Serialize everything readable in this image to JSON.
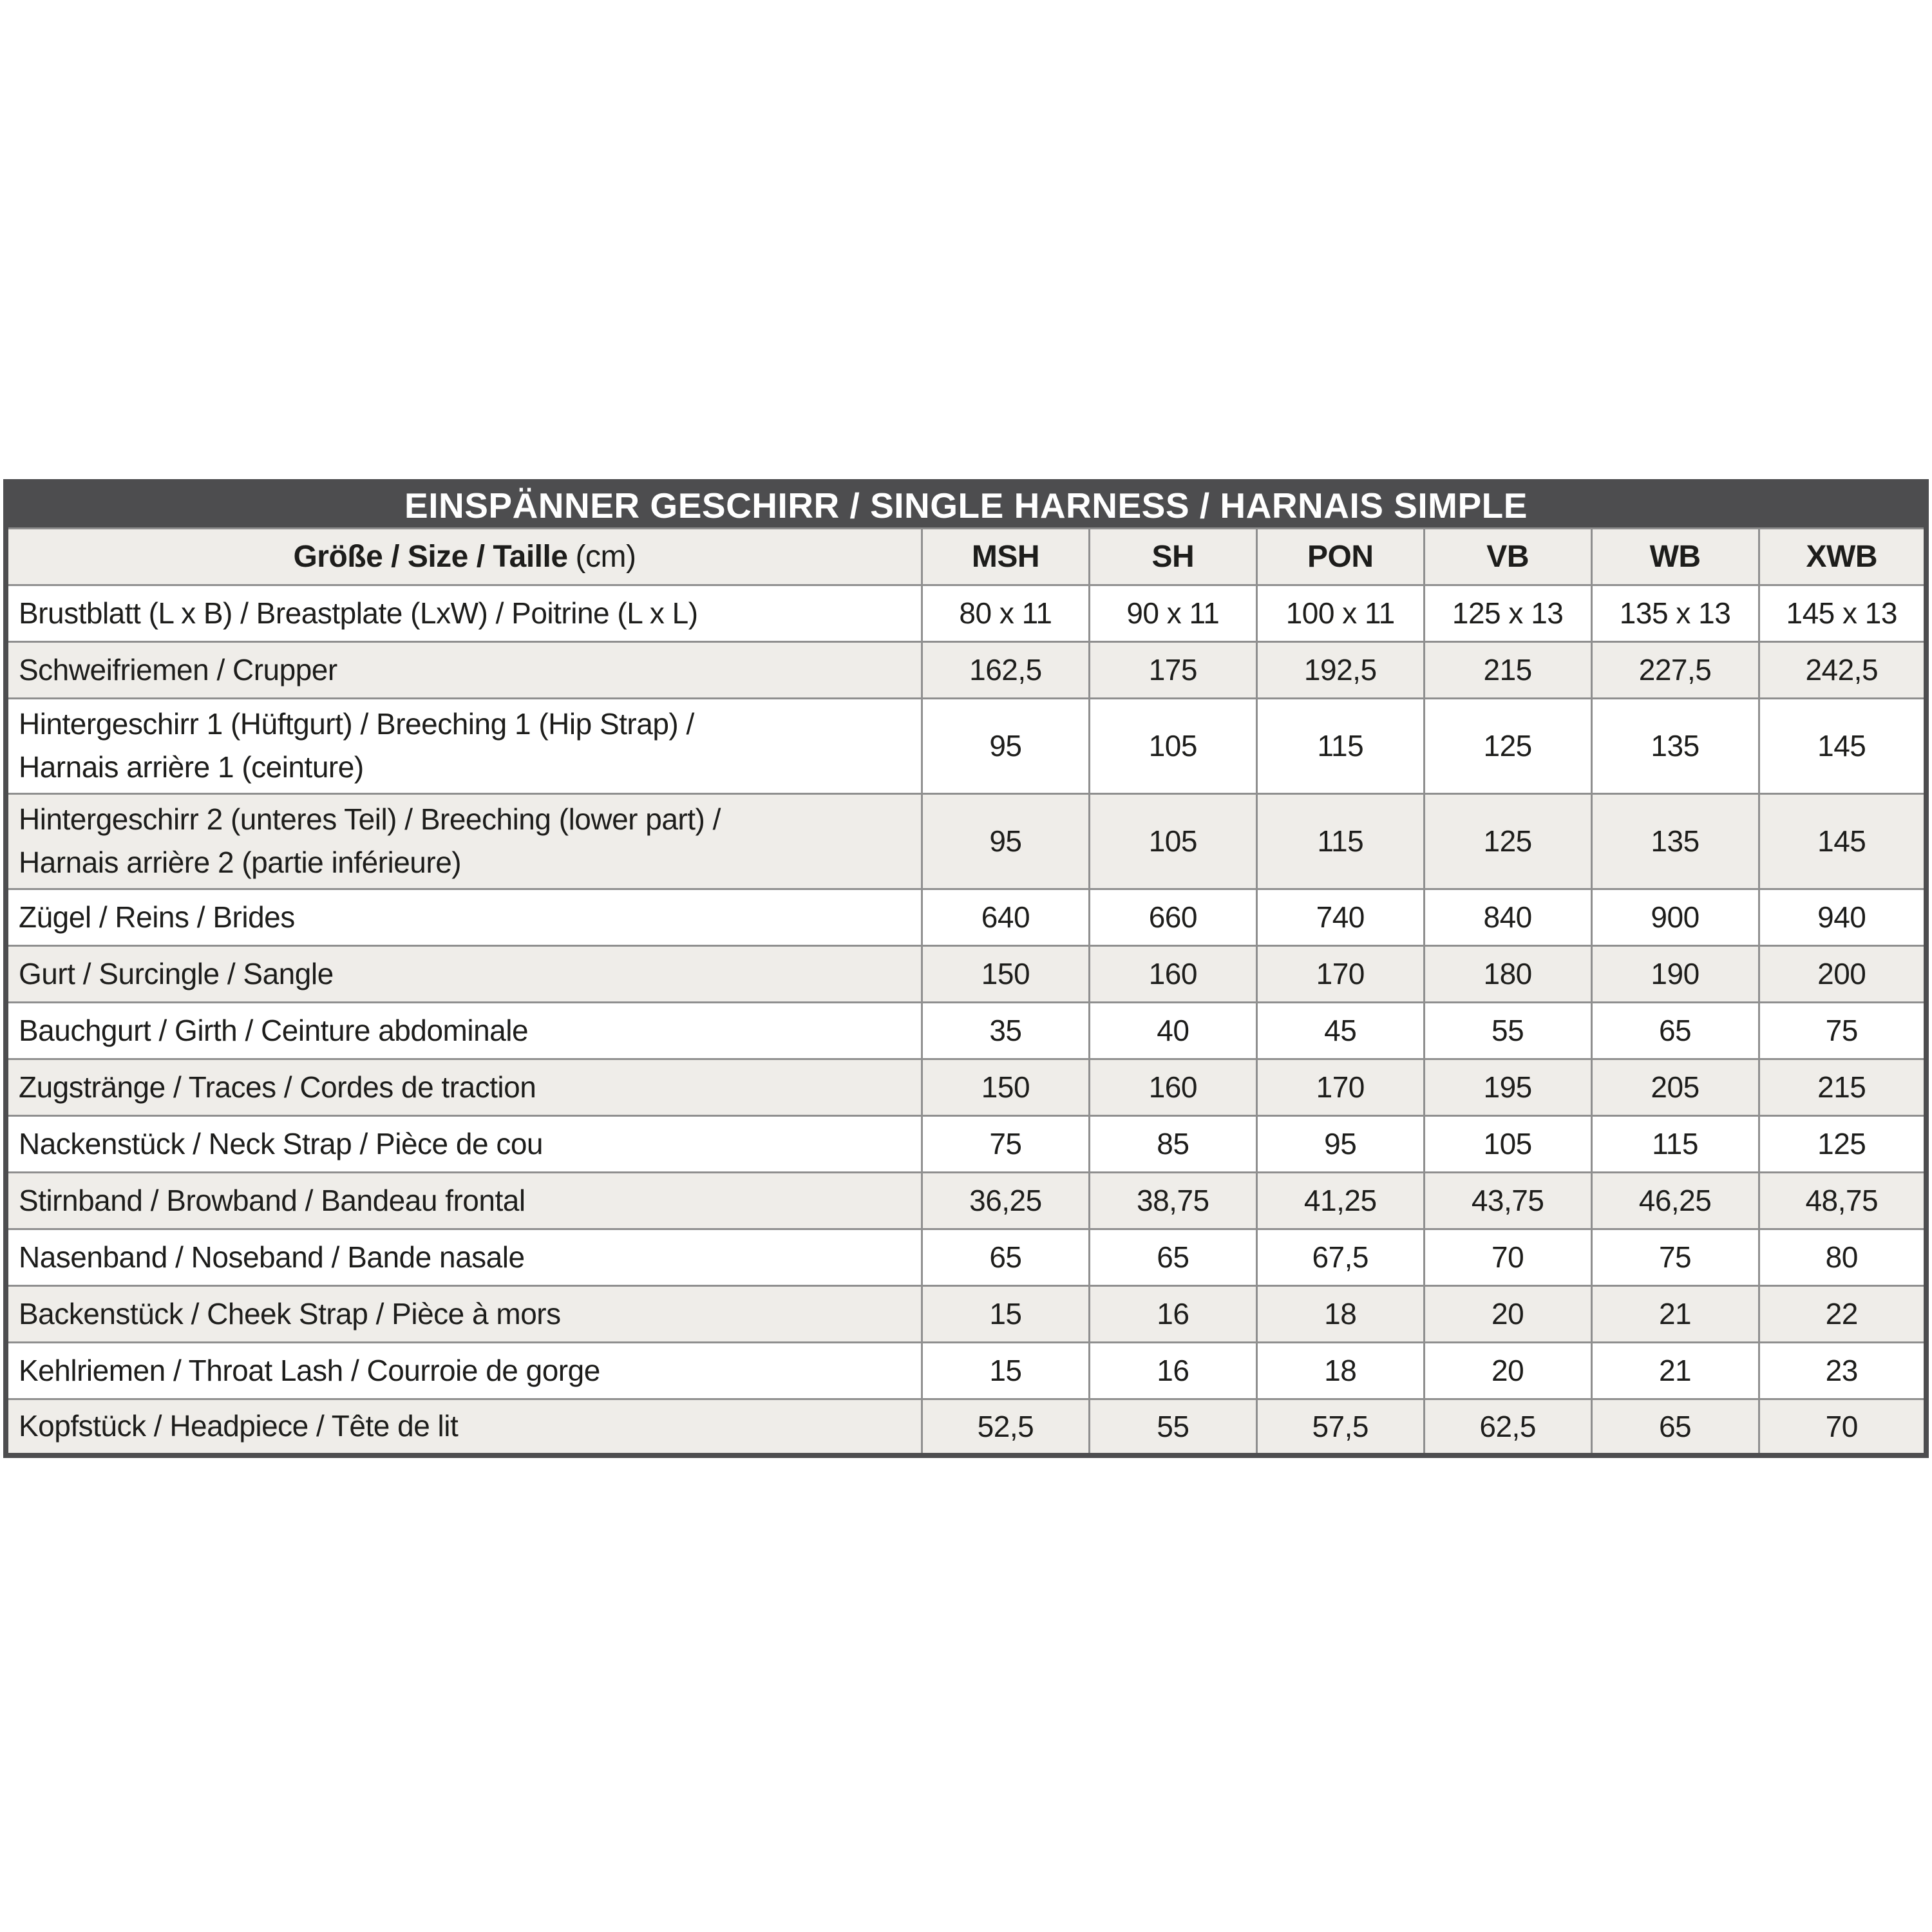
{
  "table": {
    "title": "EINSPÄNNER GESCHIRR / SINGLE HARNESS / HARNAIS SIMPLE",
    "header": {
      "label": "Größe / Size / Taille",
      "unit": "(cm)",
      "sizes": [
        "MSH",
        "SH",
        "PON",
        "VB",
        "WB",
        "XWB"
      ]
    },
    "rows": [
      {
        "label": "Brustblatt (L x B) / Breastplate (LxW) / Poitrine (L x L)",
        "values": [
          "80 x 11",
          "90 x 11",
          "100 x 11",
          "125 x 13",
          "135 x 13",
          "145 x 13"
        ]
      },
      {
        "label": "Schweifriemen / Crupper",
        "values": [
          "162,5",
          "175",
          "192,5",
          "215",
          "227,5",
          "242,5"
        ]
      },
      {
        "label": "Hintergeschirr 1 (Hüftgurt) / Breeching 1 (Hip Strap) /\nHarnais arrière 1 (ceinture)",
        "values": [
          "95",
          "105",
          "115",
          "125",
          "135",
          "145"
        ]
      },
      {
        "label": "Hintergeschirr 2  (unteres Teil) / Breeching  (lower part) /\nHarnais arrière 2 (partie inférieure)",
        "values": [
          "95",
          "105",
          "115",
          "125",
          "135",
          "145"
        ]
      },
      {
        "label": "Zügel / Reins / Brides",
        "values": [
          "640",
          "660",
          "740",
          "840",
          "900",
          "940"
        ]
      },
      {
        "label": "Gurt / Surcingle / Sangle",
        "values": [
          "150",
          "160",
          "170",
          "180",
          "190",
          "200"
        ]
      },
      {
        "label": "Bauchgurt / Girth / Ceinture abdominale",
        "values": [
          "35",
          "40",
          "45",
          "55",
          "65",
          "75"
        ]
      },
      {
        "label": "Zugstränge / Traces / Cordes de traction",
        "values": [
          "150",
          "160",
          "170",
          "195",
          "205",
          "215"
        ]
      },
      {
        "label": "Nackenstück / Neck Strap / Pièce de cou",
        "values": [
          "75",
          "85",
          "95",
          "105",
          "115",
          "125"
        ]
      },
      {
        "label": "Stirnband / Browband / Bandeau frontal",
        "values": [
          "36,25",
          "38,75",
          "41,25",
          "43,75",
          "46,25",
          "48,75"
        ]
      },
      {
        "label": "Nasenband / Noseband / Bande nasale",
        "values": [
          "65",
          "65",
          "67,5",
          "70",
          "75",
          "80"
        ]
      },
      {
        "label": "Backenstück / Cheek Strap / Pièce à mors",
        "values": [
          "15",
          "16",
          "18",
          "20",
          "21",
          "22"
        ]
      },
      {
        "label": "Kehlriemen / Throat Lash / Courroie de gorge",
        "values": [
          "15",
          "16",
          "18",
          "20",
          "21",
          "23"
        ]
      },
      {
        "label": "Kopfstück / Headpiece / Tête de lit",
        "values": [
          "52,5",
          "55",
          "57,5",
          "62,5",
          "65",
          "70"
        ]
      }
    ],
    "colors": {
      "title_bar_bg": "#4d4d4f",
      "title_bar_text": "#ffffff",
      "row_alt_bg": "#efede9",
      "row_bg": "#ffffff",
      "grid_line": "#8f8f8f",
      "text": "#1d1d1b"
    }
  }
}
